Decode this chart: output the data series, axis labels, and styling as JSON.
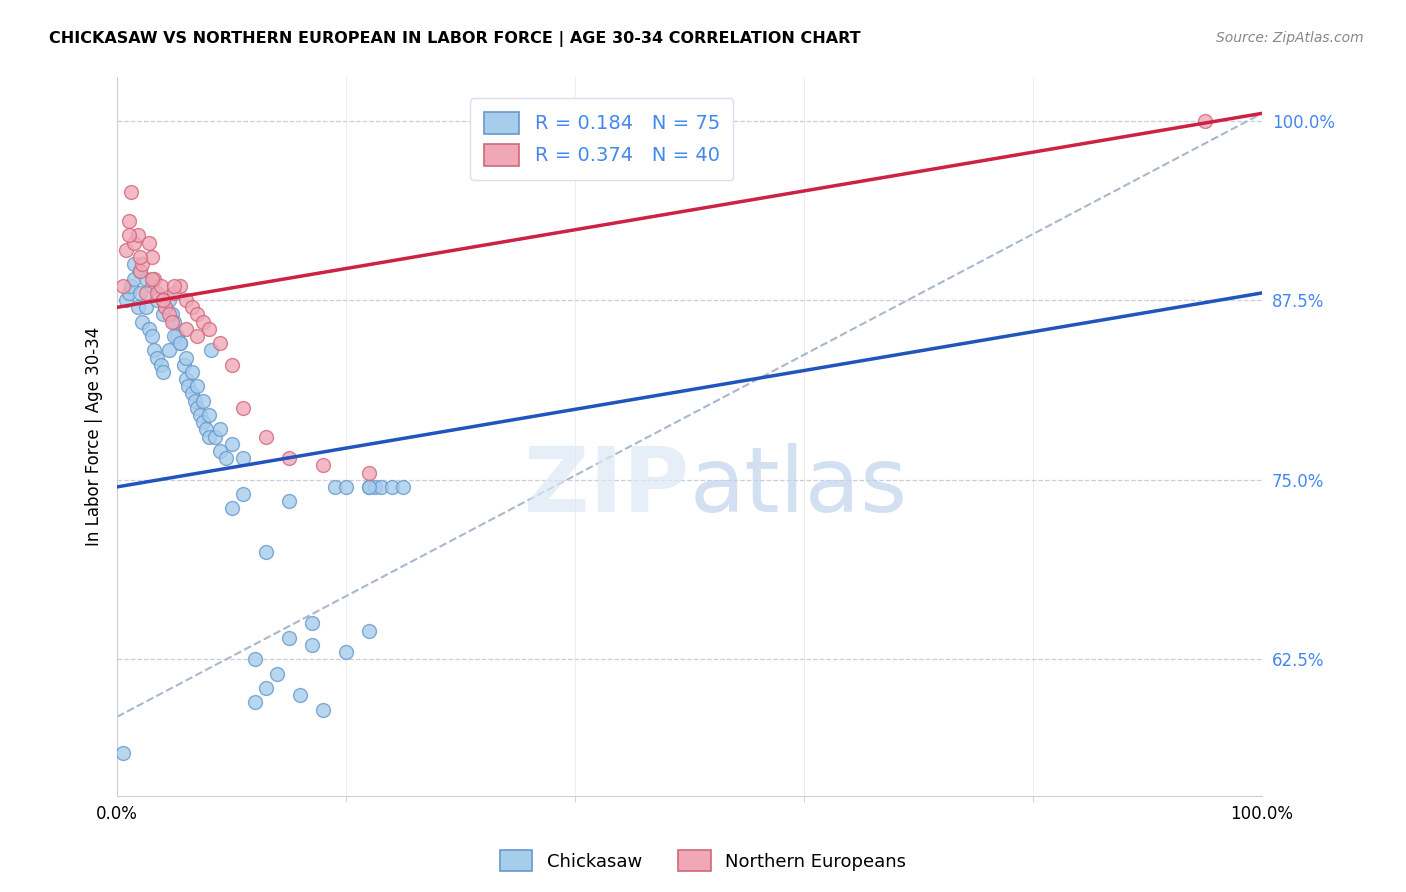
{
  "title": "CHICKASAW VS NORTHERN EUROPEAN IN LABOR FORCE | AGE 30-34 CORRELATION CHART",
  "source": "Source: ZipAtlas.com",
  "ylabel_label": "In Labor Force | Age 30-34",
  "r_chickasaw": 0.184,
  "n_chickasaw": 75,
  "r_northern": 0.374,
  "n_northern": 40,
  "blue_face": "#a8ccec",
  "blue_edge": "#6699cc",
  "pink_face": "#f0a8b8",
  "pink_edge": "#d06878",
  "trend_blue": "#2255bb",
  "trend_pink": "#cc2244",
  "ref_line_color": "#aab8cc",
  "grid_color": "#ccccdd",
  "ytick_color": "#4488ee",
  "title_fontsize": 11.5,
  "tick_fontsize": 12,
  "legend_fontsize": 14,
  "ylabel_fontsize": 12,
  "xlim": [
    0,
    100
  ],
  "ylim": [
    53,
    103
  ],
  "yticks": [
    62.5,
    75.0,
    87.5,
    100.0
  ],
  "xticks": [
    0,
    100
  ],
  "marker_size": 100,
  "blue_trend_x0": 0,
  "blue_trend_y0": 74.5,
  "blue_trend_x1": 100,
  "blue_trend_y1": 88.0,
  "pink_trend_x0": 0,
  "pink_trend_y0": 87.0,
  "pink_trend_x1": 100,
  "pink_trend_y1": 100.5,
  "ref_x0": 0,
  "ref_y0": 58.5,
  "ref_x1": 100,
  "ref_y1": 100.5,
  "chickasaw_x": [
    0.5,
    0.8,
    1.0,
    1.2,
    1.5,
    1.8,
    2.0,
    2.2,
    2.5,
    2.8,
    3.0,
    3.2,
    3.5,
    3.8,
    4.0,
    4.2,
    4.5,
    4.8,
    5.0,
    5.2,
    5.5,
    5.8,
    6.0,
    6.2,
    6.5,
    6.8,
    7.0,
    7.2,
    7.5,
    7.8,
    8.0,
    8.2,
    8.5,
    9.0,
    9.5,
    10.0,
    11.0,
    12.0,
    13.0,
    15.0,
    17.0,
    19.0,
    22.0,
    22.5,
    23.0,
    1.5,
    2.0,
    2.5,
    3.0,
    3.5,
    4.0,
    4.5,
    5.0,
    5.5,
    6.0,
    6.5,
    7.0,
    7.5,
    8.0,
    9.0,
    10.0,
    11.0,
    13.0,
    15.0,
    17.0,
    20.0,
    22.0,
    24.0,
    25.0,
    12.0,
    14.0,
    16.0,
    18.0,
    20.0,
    22.0
  ],
  "chickasaw_y": [
    56.0,
    87.5,
    88.0,
    88.5,
    89.0,
    87.0,
    88.0,
    86.0,
    87.0,
    85.5,
    85.0,
    84.0,
    83.5,
    83.0,
    82.5,
    87.0,
    87.5,
    86.5,
    86.0,
    85.0,
    84.5,
    83.0,
    82.0,
    81.5,
    81.0,
    80.5,
    80.0,
    79.5,
    79.0,
    78.5,
    78.0,
    84.0,
    78.0,
    77.0,
    76.5,
    73.0,
    74.0,
    59.5,
    70.0,
    73.5,
    63.5,
    74.5,
    74.5,
    74.5,
    74.5,
    90.0,
    89.5,
    89.0,
    88.5,
    87.5,
    86.5,
    84.0,
    85.0,
    84.5,
    83.5,
    82.5,
    81.5,
    80.5,
    79.5,
    78.5,
    77.5,
    76.5,
    60.5,
    64.0,
    65.0,
    74.5,
    74.5,
    74.5,
    74.5,
    62.5,
    61.5,
    60.0,
    59.0,
    63.0,
    64.5
  ],
  "northern_x": [
    0.5,
    0.8,
    1.0,
    1.2,
    1.5,
    1.8,
    2.0,
    2.2,
    2.5,
    2.8,
    3.0,
    3.2,
    3.5,
    3.8,
    4.0,
    4.2,
    4.5,
    4.8,
    5.0,
    5.5,
    6.0,
    6.5,
    7.0,
    7.5,
    8.0,
    9.0,
    10.0,
    11.0,
    13.0,
    15.0,
    18.0,
    22.0,
    1.0,
    2.0,
    3.0,
    4.0,
    5.0,
    6.0,
    7.0,
    95.0
  ],
  "northern_y": [
    88.5,
    91.0,
    93.0,
    95.0,
    91.5,
    92.0,
    89.5,
    90.0,
    88.0,
    91.5,
    90.5,
    89.0,
    88.0,
    88.5,
    87.5,
    87.0,
    86.5,
    86.0,
    88.0,
    88.5,
    87.5,
    87.0,
    86.5,
    86.0,
    85.5,
    84.5,
    83.0,
    80.0,
    78.0,
    76.5,
    76.0,
    75.5,
    92.0,
    90.5,
    89.0,
    87.5,
    88.5,
    85.5,
    85.0,
    100.0
  ]
}
